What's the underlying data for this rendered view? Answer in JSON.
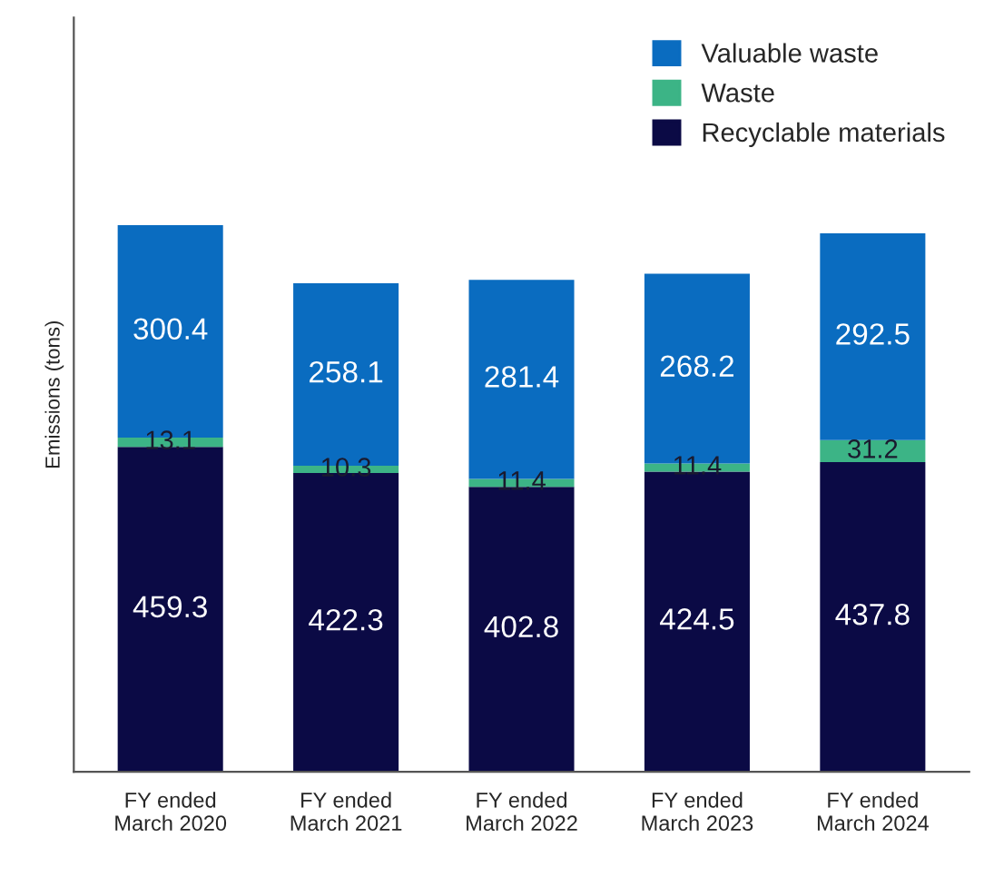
{
  "chart_data": {
    "type": "bar",
    "stacked": true,
    "ylabel": "Emissions (tons)",
    "categories": [
      "FY ended\nMarch 2020",
      "FY ended\nMarch 2021",
      "FY ended\nMarch 2022",
      "FY ended\nMarch 2023",
      "FY ended\nMarch 2024"
    ],
    "series": [
      {
        "name": "Recyclable materials",
        "color": "#0b0a45",
        "values": [
          459.3,
          422.3,
          402.8,
          424.5,
          437.8
        ]
      },
      {
        "name": "Waste",
        "color": "#3cb486",
        "values": [
          13.1,
          10.3,
          11.4,
          11.4,
          31.2
        ]
      },
      {
        "name": "Valuable waste",
        "color": "#0a6cc0",
        "values": [
          300.4,
          258.1,
          281.4,
          268.2,
          292.5
        ]
      }
    ],
    "data_labels": true,
    "legend": "top right",
    "tick_labels": "x",
    "grid": false
  }
}
